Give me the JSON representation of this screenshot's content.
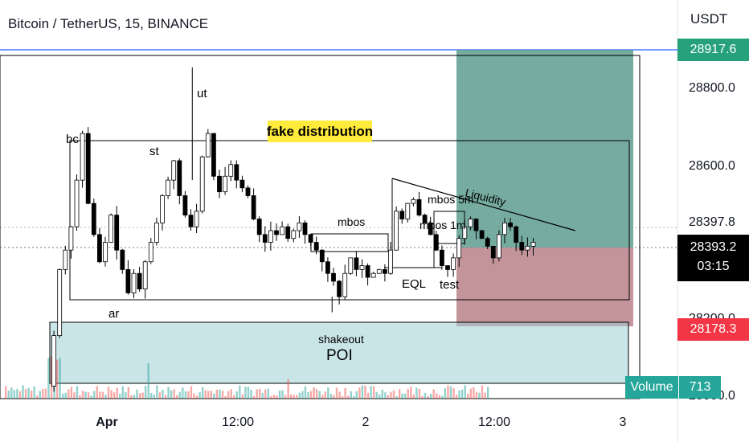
{
  "header": {
    "symbol_line": "Bitcoin / TetherUS, 15, BINANCE"
  },
  "price_axis": {
    "currency": "USDT",
    "ticks": [
      "28800.0",
      "28600.0",
      "28397.8"
    ],
    "partial_ticks": [
      "28200.0",
      "28000.0"
    ]
  },
  "badges": {
    "target": {
      "value": "28917.6",
      "color": "#26a17b"
    },
    "last": {
      "value": "28393.2",
      "countdown": "03:15",
      "color": "#000000"
    },
    "stop": {
      "value": "28178.3",
      "color": "#f23645"
    }
  },
  "volume_badge": {
    "label": "Volume",
    "value": "713",
    "color": "#26a69a"
  },
  "annotations": {
    "fake_distribution": "fake distribution",
    "bc": "bc",
    "st": "st",
    "ut": "ut",
    "ar": "ar",
    "shakeout": "shakeout",
    "poi": "POI",
    "mbos": "mbos",
    "mbos_5m": "mbos 5m",
    "mbos_1m": "mbos 1m",
    "liquidity": "Liquidity",
    "eql": "EQL",
    "test": "test"
  },
  "chart_data": {
    "type": "candlestick",
    "symbol": "Bitcoin / TetherUS",
    "interval": "15",
    "exchange": "BINANCE",
    "x_tick_labels": [
      "Apr",
      "12:00",
      "2",
      "12:00",
      "3"
    ],
    "y_tick_labels": [
      28800.0,
      28600.0
    ],
    "ylim": [
      28000,
      28980
    ],
    "last_price": 28393.2,
    "long_position": {
      "target": 28917.6,
      "entry": 28393.2,
      "stop": 28178.3
    },
    "close_path": [
      [
        0,
        28030
      ],
      [
        2,
        28160
      ],
      [
        4,
        28330
      ],
      [
        6,
        28380
      ],
      [
        8,
        28440
      ],
      [
        10,
        28560
      ],
      [
        12,
        28680
      ],
      [
        14,
        28500
      ],
      [
        16,
        28420
      ],
      [
        18,
        28350
      ],
      [
        20,
        28400
      ],
      [
        22,
        28470
      ],
      [
        24,
        28380
      ],
      [
        26,
        28330
      ],
      [
        28,
        28270
      ],
      [
        30,
        28320
      ],
      [
        32,
        28280
      ],
      [
        34,
        28350
      ],
      [
        36,
        28400
      ],
      [
        38,
        28450
      ],
      [
        40,
        28520
      ],
      [
        42,
        28560
      ],
      [
        44,
        28610
      ],
      [
        46,
        28520
      ],
      [
        48,
        28470
      ],
      [
        50,
        28440
      ],
      [
        52,
        28480
      ],
      [
        54,
        28620
      ],
      [
        56,
        28680
      ],
      [
        58,
        28570
      ],
      [
        60,
        28530
      ],
      [
        62,
        28570
      ],
      [
        64,
        28600
      ],
      [
        66,
        28560
      ],
      [
        68,
        28540
      ],
      [
        70,
        28520
      ],
      [
        72,
        28460
      ],
      [
        74,
        28420
      ],
      [
        76,
        28400
      ],
      [
        78,
        28430
      ],
      [
        80,
        28420
      ],
      [
        82,
        28440
      ],
      [
        84,
        28410
      ],
      [
        86,
        28430
      ],
      [
        88,
        28450
      ],
      [
        90,
        28420
      ],
      [
        92,
        28400
      ],
      [
        94,
        28380
      ],
      [
        96,
        28350
      ],
      [
        98,
        28320
      ],
      [
        100,
        28300
      ],
      [
        102,
        28260
      ],
      [
        104,
        28320
      ],
      [
        106,
        28360
      ],
      [
        108,
        28330
      ],
      [
        110,
        28340
      ],
      [
        112,
        28310
      ],
      [
        114,
        28320
      ],
      [
        116,
        28330
      ],
      [
        118,
        28320
      ],
      [
        120,
        28380
      ],
      [
        122,
        28480
      ],
      [
        124,
        28460
      ],
      [
        126,
        28500
      ],
      [
        128,
        28510
      ],
      [
        130,
        28470
      ],
      [
        132,
        28450
      ],
      [
        134,
        28420
      ],
      [
        136,
        28380
      ],
      [
        138,
        28340
      ],
      [
        140,
        28330
      ],
      [
        142,
        28360
      ],
      [
        144,
        28410
      ],
      [
        146,
        28440
      ],
      [
        148,
        28460
      ],
      [
        150,
        28430
      ],
      [
        152,
        28410
      ],
      [
        154,
        28390
      ],
      [
        156,
        28360
      ],
      [
        158,
        28420
      ],
      [
        160,
        28450
      ],
      [
        162,
        28440
      ],
      [
        164,
        28400
      ],
      [
        166,
        28380
      ],
      [
        168,
        28390
      ],
      [
        170,
        28400
      ]
    ]
  }
}
